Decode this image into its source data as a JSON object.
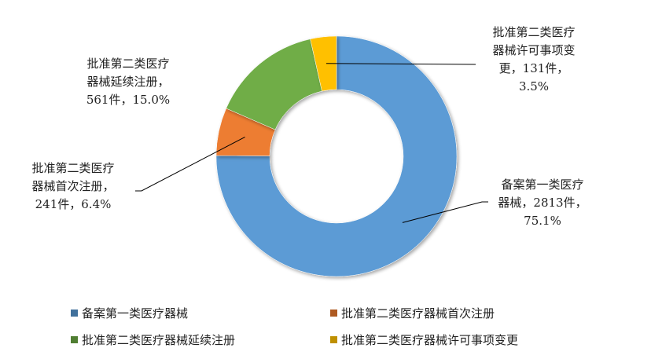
{
  "chart_data": {
    "type": "pie",
    "donut": true,
    "categories": [
      "备案第一类医疗器械",
      "批准第二类医疗器械首次注册",
      "批准第二类医疗器械延续注册",
      "批准第二类医疗器械许可事项变更"
    ],
    "values": [
      2813,
      241,
      561,
      131
    ],
    "percents": [
      "75.1%",
      "6.4%",
      "15.0%",
      "3.5%"
    ],
    "colors": [
      "#5b9bd5",
      "#ed7d31",
      "#70ad47",
      "#ffc000"
    ],
    "data_labels": [
      "备案第一类医疗\n器械，2813件，\n75.1%",
      "批准第二类医疗\n器械首次注册，\n241件，6.4%",
      "批准第二类医疗\n器械延续注册，\n561件，15.0%",
      "批准第二类医疗\n器械许可事项变\n更，131件，\n3.5%"
    ],
    "legend_position": "bottom"
  }
}
